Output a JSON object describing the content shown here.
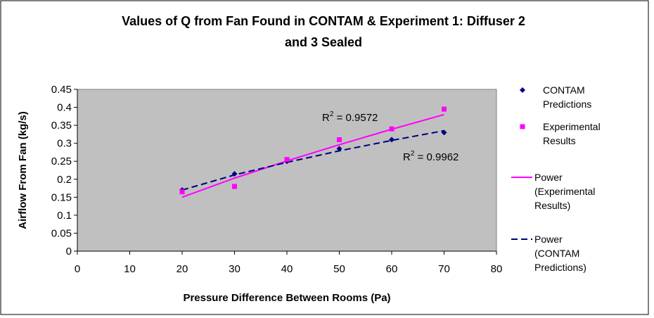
{
  "chart_data": {
    "type": "scatter",
    "title": [
      "Values of Q from Fan Found in CONTAM & Experiment 1: Diffuser 2",
      "and 3 Sealed"
    ],
    "x_label": "Pressure Difference Between Rooms (Pa)",
    "y_label": "Airflow From Fan (kg/s)",
    "xlim": [
      0,
      80
    ],
    "xticks": [
      0,
      10,
      20,
      30,
      40,
      50,
      60,
      70,
      80
    ],
    "ylim": [
      0,
      0.45
    ],
    "yticks": [
      0,
      0.05,
      0.1,
      0.15,
      0.2,
      0.25,
      0.3,
      0.35,
      0.4,
      0.45
    ],
    "plot_background": "#c0c0c0",
    "grid": false,
    "series": [
      {
        "name": "CONTAM Predictions",
        "color": "#000080",
        "marker": "diamond",
        "x": [
          20,
          30,
          40,
          50,
          60,
          70
        ],
        "values": [
          0.17,
          0.215,
          0.25,
          0.285,
          0.31,
          0.33
        ]
      },
      {
        "name": "Experimental Results",
        "color": "#ff00ff",
        "marker": "square",
        "x": [
          20,
          30,
          40,
          50,
          60,
          70
        ],
        "values": [
          0.165,
          0.18,
          0.255,
          0.31,
          0.34,
          0.395
        ]
      },
      {
        "name": "Power (Experimental Results)",
        "color": "#ff00ff",
        "line": "solid",
        "x": [
          20,
          30,
          40,
          50,
          60,
          70
        ],
        "values": [
          0.15,
          0.203,
          0.251,
          0.296,
          0.339,
          0.38
        ]
      },
      {
        "name": "Power (CONTAM Predictions)",
        "color": "#000080",
        "line": "dashed",
        "x": [
          20,
          30,
          40,
          50,
          60,
          70
        ],
        "values": [
          0.17,
          0.212,
          0.247,
          0.279,
          0.308,
          0.335
        ]
      }
    ],
    "annotations": [
      {
        "prefix": "R",
        "sup": "2",
        "text": " = 0.9572"
      },
      {
        "prefix": "R",
        "sup": "2",
        "text": " = 0.9962"
      }
    ]
  }
}
